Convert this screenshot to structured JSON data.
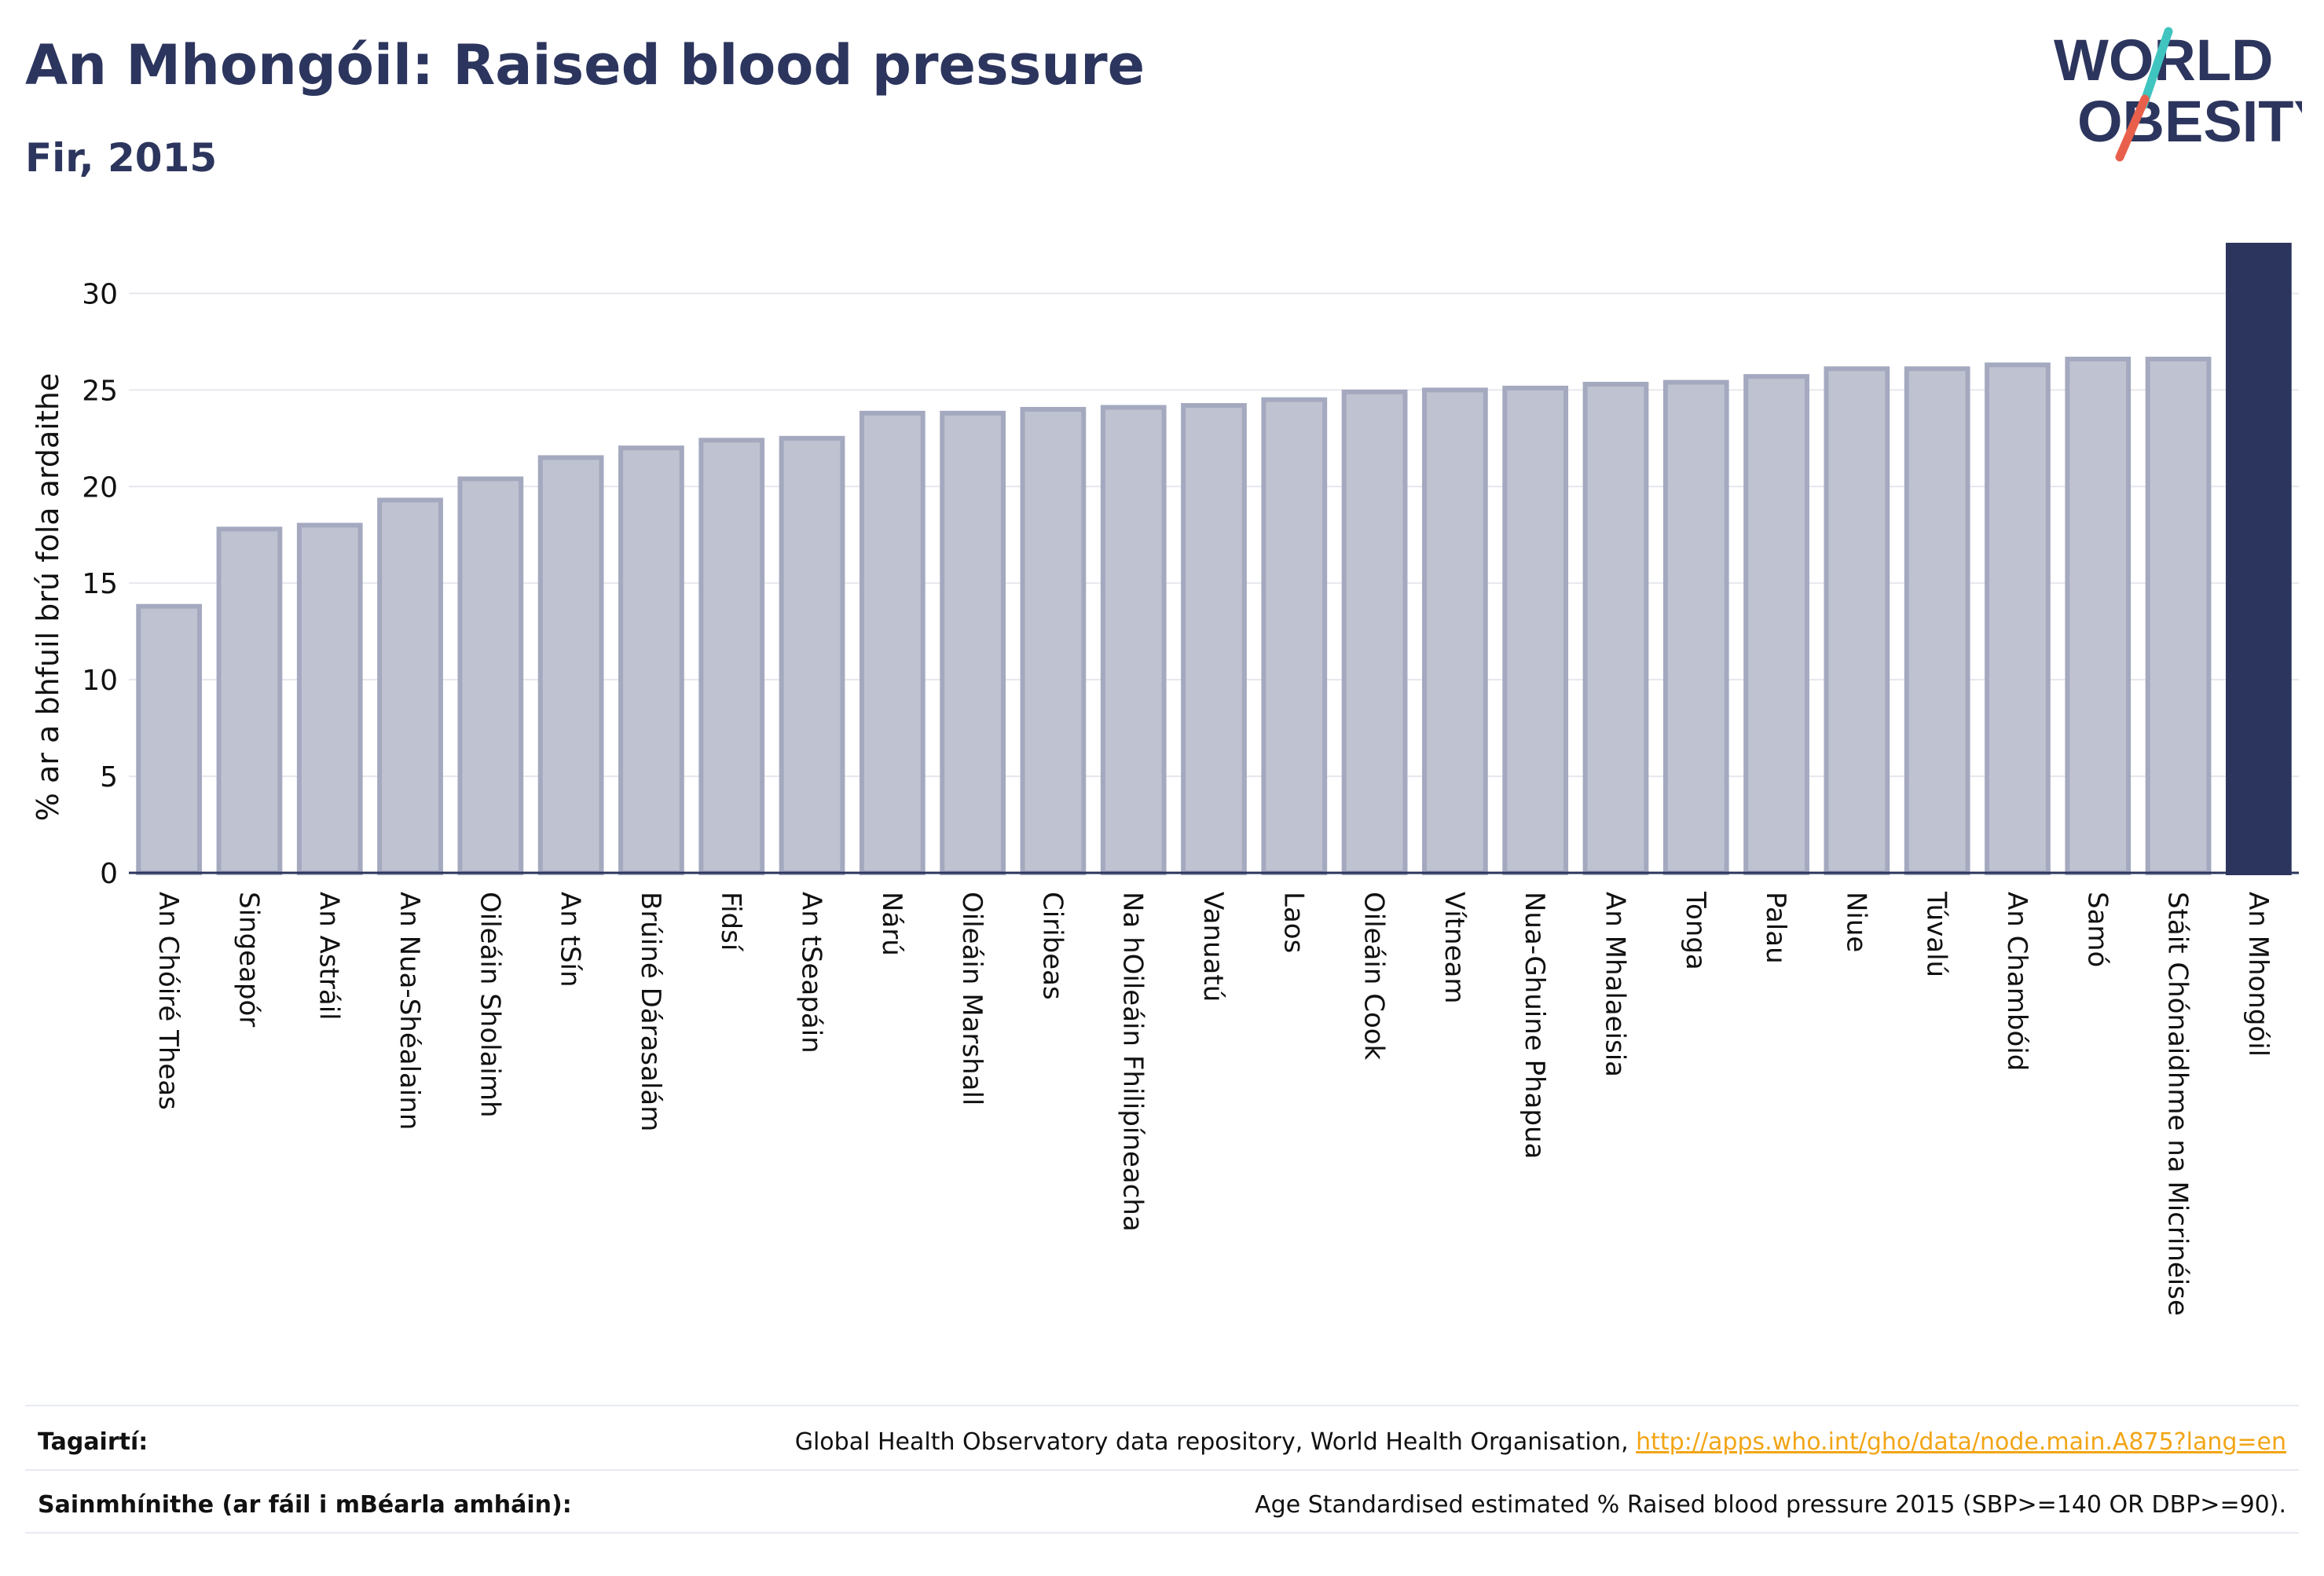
{
  "header": {
    "title": "An Mhongóil: Raised blood pressure",
    "subtitle": "Fir, 2015"
  },
  "logo": {
    "line1": "WORLD",
    "line2": "OBESITY",
    "text_color": "#2c355d",
    "slash_color_top": "#3fc4c0",
    "slash_color_bottom": "#e8604c"
  },
  "chart_data": {
    "type": "bar",
    "title": "An Mhongóil: Raised blood pressure",
    "subtitle": "Fir, 2015",
    "xlabel": "",
    "ylabel": "% ar a bhfuil brú fola ardaithe",
    "ylim": [
      0,
      32.5
    ],
    "yticks": [
      0,
      5,
      10,
      15,
      20,
      25,
      30
    ],
    "grid": true,
    "highlight_index": 26,
    "colors": {
      "bar": "#bfc2d0",
      "bar_edge": "#a4a9bf",
      "highlight": "#2c355d",
      "grid": "#e6e7ee",
      "axis": "#2c355d"
    },
    "categories": [
      "An Chóiré Theas",
      "Singeapór",
      "An Astráil",
      "An Nua-Shéalainn",
      "Oileáin Sholaimh",
      "An tSín",
      "Brúiné Dárasalám",
      "Fidsí",
      "An tSeapáin",
      "Nárú",
      "Oileáin Marshall",
      "Ciribeas",
      "Na hOileáin Fhilipíneacha",
      "Vanuatú",
      "Laos",
      "Oileáin Cook",
      "Vítneam",
      "Nua-Ghuine Phapua",
      "An Mhalaeisia",
      "Tonga",
      "Palau",
      "Niue",
      "Túvalú",
      "An Chambóid",
      "Samó",
      "Stáit Chónaidhme na Micrinéise",
      "An Mhongóil"
    ],
    "values": [
      13.8,
      17.8,
      18.0,
      19.3,
      20.4,
      21.5,
      22.0,
      22.4,
      22.5,
      23.8,
      23.8,
      24.0,
      24.1,
      24.2,
      24.5,
      24.9,
      25.0,
      25.1,
      25.3,
      25.4,
      25.7,
      26.1,
      26.1,
      26.3,
      26.6,
      26.6,
      32.5
    ]
  },
  "footer": {
    "references_label": "Tagairtí:",
    "references_text": "Global Health Observatory data repository, World Health Organisation, ",
    "references_link": "http://apps.who.int/gho/data/node.main.A875?lang=en",
    "definitions_label": "Sainmhínithe (ar fáil i mBéarla amháin):",
    "definitions_text": "Age Standardised estimated % Raised blood pressure 2015 (SBP>=140 OR DBP>=90)."
  }
}
